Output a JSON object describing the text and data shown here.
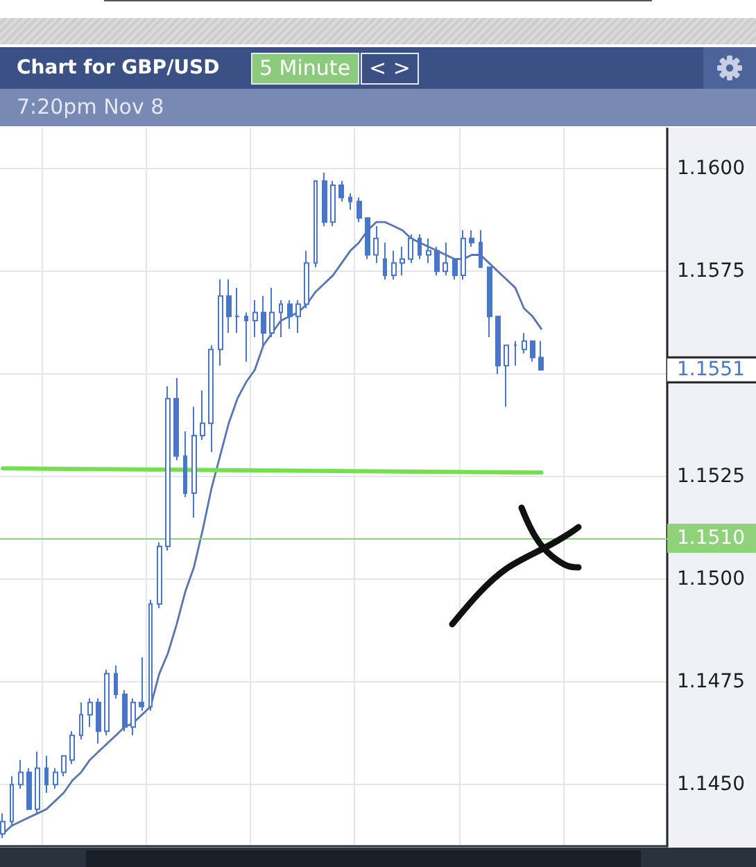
{
  "chart_data": {
    "type": "candlestick",
    "title": "Chart for GBP/USD",
    "subtitle": "7:20pm Nov 8",
    "annotations": [
      "5 Minute",
      "< >",
      "1.1551"
    ],
    "categories": [
      null,
      null,
      null,
      null,
      null,
      null,
      null,
      null,
      null,
      null,
      null,
      null,
      null,
      null,
      null,
      null,
      null,
      null,
      null,
      null,
      null,
      null,
      null,
      null,
      null,
      null,
      null,
      null,
      null,
      null,
      null,
      null,
      null,
      null,
      null,
      null,
      null,
      null,
      null,
      null,
      null,
      null,
      null,
      null,
      null,
      null,
      null,
      null,
      null,
      null,
      null,
      null,
      null,
      null,
      null,
      null,
      null,
      null,
      null,
      null,
      null,
      null,
      null
    ],
    "color": "#4a76c8",
    "ohlc": [
      [
        1.1438,
        1.1443,
        1.1437,
        1.1441
      ],
      [
        1.1441,
        1.1452,
        1.144,
        1.145
      ],
      [
        1.145,
        1.1456,
        1.1449,
        1.1453
      ],
      [
        1.1453,
        1.1454,
        1.1444,
        1.1444
      ],
      [
        1.1444,
        1.1458,
        1.1443,
        1.1454
      ],
      [
        1.1454,
        1.1457,
        1.1448,
        1.145
      ],
      [
        1.145,
        1.1454,
        1.1449,
        1.1453
      ],
      [
        1.1453,
        1.1457,
        1.1452,
        1.1457
      ],
      [
        1.1456,
        1.1463,
        1.1455,
        1.1462
      ],
      [
        1.1462,
        1.147,
        1.1461,
        1.1467
      ],
      [
        1.1467,
        1.1471,
        1.1464,
        1.147
      ],
      [
        1.147,
        1.1471,
        1.146,
        1.1463
      ],
      [
        1.1463,
        1.1478,
        1.1462,
        1.1477
      ],
      [
        1.1477,
        1.1479,
        1.1471,
        1.1472
      ],
      [
        1.1472,
        1.1473,
        1.1463,
        1.1464
      ],
      [
        1.1464,
        1.1471,
        1.1462,
        1.147
      ],
      [
        1.147,
        1.1481,
        1.1468,
        1.1469
      ],
      [
        1.1469,
        1.1495,
        1.1468,
        1.1494
      ],
      [
        1.1494,
        1.1509,
        1.1493,
        1.1508
      ],
      [
        1.1508,
        1.1547,
        1.1507,
        1.1544
      ],
      [
        1.1544,
        1.1549,
        1.1529,
        1.153
      ],
      [
        1.153,
        1.1536,
        1.152,
        1.1521
      ],
      [
        1.1521,
        1.1542,
        1.1515,
        1.1535
      ],
      [
        1.1535,
        1.1546,
        1.1534,
        1.1538
      ],
      [
        1.1538,
        1.1557,
        1.1531,
        1.1556
      ],
      [
        1.1556,
        1.1573,
        1.1552,
        1.1569
      ],
      [
        1.1569,
        1.1573,
        1.156,
        1.1564
      ],
      [
        1.1564,
        1.1571,
        1.156,
        1.1564
      ],
      [
        1.1564,
        1.1565,
        1.1553,
        1.1563
      ],
      [
        1.1563,
        1.1568,
        1.1559,
        1.1565
      ],
      [
        1.1565,
        1.1569,
        1.1557,
        1.156
      ],
      [
        1.156,
        1.1571,
        1.1559,
        1.1565
      ],
      [
        1.1565,
        1.1568,
        1.1559,
        1.1567
      ],
      [
        1.1567,
        1.1568,
        1.1561,
        1.1564
      ],
      [
        1.1564,
        1.1568,
        1.156,
        1.1567
      ],
      [
        1.1567,
        1.158,
        1.1566,
        1.1577
      ],
      [
        1.1577,
        1.1597,
        1.1576,
        1.1597
      ],
      [
        1.1597,
        1.1599,
        1.1586,
        1.1587
      ],
      [
        1.1587,
        1.1597,
        1.1586,
        1.1596
      ],
      [
        1.1596,
        1.1597,
        1.1592,
        1.1593
      ],
      [
        1.1593,
        1.1594,
        1.159,
        1.1592
      ],
      [
        1.1592,
        1.1593,
        1.1587,
        1.1588
      ],
      [
        1.1588,
        1.1588,
        1.1578,
        1.1579
      ],
      [
        1.1579,
        1.1586,
        1.1577,
        1.1583
      ],
      [
        1.1578,
        1.1582,
        1.1573,
        1.1574
      ],
      [
        1.1574,
        1.158,
        1.1573,
        1.1577
      ],
      [
        1.1577,
        1.1581,
        1.1574,
        1.1578
      ],
      [
        1.1578,
        1.1584,
        1.1577,
        1.1583
      ],
      [
        1.1583,
        1.1584,
        1.1578,
        1.1579
      ],
      [
        1.1579,
        1.1583,
        1.1577,
        1.158
      ],
      [
        1.158,
        1.1581,
        1.1574,
        1.1575
      ],
      [
        1.1575,
        1.1582,
        1.1574,
        1.1577
      ],
      [
        1.1578,
        1.1578,
        1.1573,
        1.1574
      ],
      [
        1.1574,
        1.1585,
        1.1573,
        1.1583
      ],
      [
        1.1583,
        1.1585,
        1.1581,
        1.1582
      ],
      [
        1.1582,
        1.1585,
        1.1576,
        1.1576
      ],
      [
        1.1576,
        1.1576,
        1.1559,
        1.1564
      ],
      [
        1.1564,
        1.1564,
        1.155,
        1.1552
      ],
      [
        1.1552,
        1.1557,
        1.1542,
        1.1557
      ],
      [
        1.1557,
        1.1558,
        1.1552,
        1.1557
      ],
      [
        1.1556,
        1.156,
        1.1555,
        1.1558
      ],
      [
        1.1558,
        1.1558,
        1.1553,
        1.1554
      ],
      [
        1.1554,
        1.1558,
        1.1551,
        1.1551
      ]
    ],
    "series": [
      {
        "type": "line",
        "color": "#5874b4",
        "values": [
          1.1438,
          1.144,
          1.1441,
          1.1442,
          1.1443,
          1.1444,
          1.1446,
          1.1448,
          1.1451,
          1.1453,
          1.1456,
          1.1458,
          1.146,
          1.1462,
          1.1464,
          1.1465,
          1.1467,
          1.1469,
          1.1477,
          1.1482,
          1.1489,
          1.1497,
          1.1503,
          1.1512,
          1.1522,
          1.153,
          1.1538,
          1.1544,
          1.1548,
          1.1551,
          1.1557,
          1.156,
          1.1563,
          1.1564,
          1.1565,
          1.1567,
          1.157,
          1.1572,
          1.1574,
          1.1577,
          1.158,
          1.1582,
          1.1585,
          1.1587,
          1.1587,
          1.1586,
          1.1585,
          1.1583,
          1.1582,
          1.1581,
          1.158,
          1.1579,
          1.1578,
          1.1578,
          1.1579,
          1.1579,
          1.1577,
          1.1575,
          1.1573,
          1.1571,
          1.1566,
          1.1564,
          1.1561
        ]
      },
      {
        "type": "line",
        "color": "#74e04e",
        "values": [
          1.1527,
          null,
          null,
          null,
          null,
          null,
          null,
          null,
          null,
          null,
          null,
          null,
          null,
          null,
          null,
          null,
          null,
          null,
          null,
          null,
          null,
          null,
          null,
          null,
          null,
          null,
          null,
          null,
          null,
          null,
          null,
          null,
          null,
          null,
          null,
          null,
          null,
          null,
          null,
          null,
          null,
          null,
          null,
          null,
          null,
          null,
          null,
          null,
          null,
          null,
          null,
          null,
          null,
          null,
          null,
          null,
          null,
          null,
          null,
          null,
          null,
          null,
          1.1526
        ]
      }
    ],
    "ylim": [
      1.1435,
      1.161
    ],
    "yticks": [
      {
        "value": 1.145,
        "label": "1.1450"
      },
      1.1475,
      {
        "value": 1.15,
        "label": "1.1500"
      },
      1.1525,
      {
        "value": 1.155,
        "label": null
      },
      1.1575,
      {
        "value": 1.16,
        "label": "1.1600"
      }
    ],
    "ref_lines": [
      {
        "axis": "y",
        "value": 1.151,
        "label": "1.1510",
        "color": "#8fd27a"
      }
    ],
    "grid": true,
    "tick_labels": "y"
  }
}
